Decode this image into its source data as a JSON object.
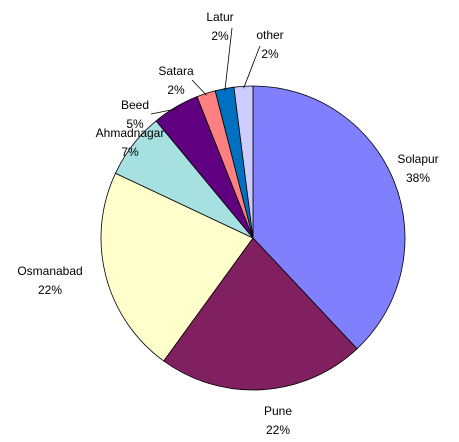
{
  "chart_data": {
    "type": "pie",
    "categories": [
      "Solapur",
      "Pune",
      "Osmanabad",
      "Ahmadnagar",
      "Beed",
      "Satara",
      "Latur",
      "other"
    ],
    "values": [
      38,
      22,
      22,
      7,
      5,
      2,
      2,
      2
    ],
    "value_labels": [
      "38%",
      "22%",
      "22%",
      "7%",
      "5%",
      "2%",
      "2%",
      "2%"
    ],
    "colors": [
      "#8080ff",
      "#802060",
      "#ffffcc",
      "#a6e0e0",
      "#600080",
      "#ff8080",
      "#0070c0",
      "#ccccff"
    ]
  }
}
